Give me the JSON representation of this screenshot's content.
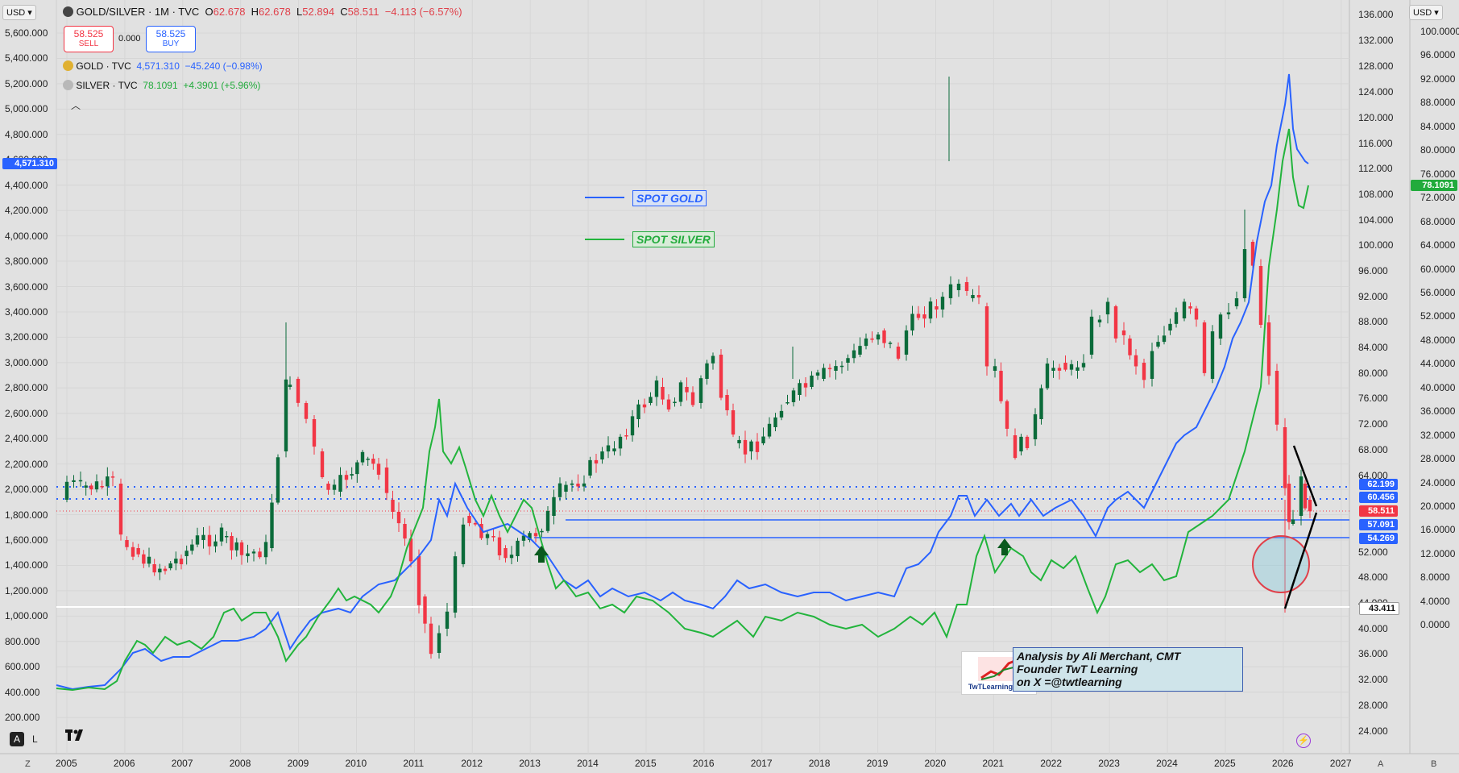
{
  "header": {
    "symbol": "GOLD/SILVER · 1M · TVC",
    "open_label": "O",
    "open": "62.678",
    "high_label": "H",
    "high": "62.678",
    "low_label": "L",
    "low": "52.894",
    "close_label": "C",
    "close": "58.511",
    "change": "−4.113 (−6.57%)"
  },
  "trade": {
    "sell_price": "58.525",
    "sell_label": "SELL",
    "spread": "0.000",
    "buy_price": "58.525",
    "buy_label": "BUY"
  },
  "overlays": [
    {
      "name": "GOLD · TVC",
      "value": "4,571.310",
      "change": "−45.240 (−0.98%)",
      "color": "#2962ff"
    },
    {
      "name": "SILVER · TVC",
      "value": "78.1091",
      "change": "+4.3901 (+5.96%)",
      "color": "#22ab3c"
    }
  ],
  "currency_left": "USD",
  "currency_right": "USD",
  "left_axis": {
    "ticks": [
      "5,600.000",
      "5,400.000",
      "5,200.000",
      "5,000.000",
      "4,800.000",
      "4,600.000",
      "4,400.000",
      "4,200.000",
      "4,000.000",
      "3,800.000",
      "3,600.000",
      "3,400.000",
      "3,200.000",
      "3,000.000",
      "2,800.000",
      "2,600.000",
      "2,400.000",
      "2,200.000",
      "2,000.000",
      "1,800.000",
      "1,600.000",
      "1,400.000",
      "1,200.000",
      "1,000.000",
      "800.000",
      "600.000",
      "400.000",
      "200.000"
    ],
    "current_gold": "4,571.310"
  },
  "right_axis_ratio": {
    "ticks": [
      "136.000",
      "132.000",
      "128.000",
      "124.000",
      "120.000",
      "116.000",
      "112.000",
      "108.000",
      "104.000",
      "100.000",
      "96.000",
      "92.000",
      "88.000",
      "84.000",
      "80.000",
      "76.000",
      "72.000",
      "68.000",
      "64.000",
      "52.000",
      "48.000",
      "44.000",
      "40.000",
      "36.000",
      "32.000",
      "28.000",
      "24.000"
    ]
  },
  "right_axis_silver": {
    "ticks": [
      "100.0000",
      "96.0000",
      "92.0000",
      "88.0000",
      "84.0000",
      "80.0000",
      "76.0000",
      "72.0000",
      "68.0000",
      "64.0000",
      "60.0000",
      "56.0000",
      "52.0000",
      "48.0000",
      "44.0000",
      "40.0000",
      "36.0000",
      "32.0000",
      "28.0000",
      "24.0000",
      "20.0000",
      "16.0000",
      "12.0000",
      "8.0000",
      "4.0000",
      "0.0000"
    ],
    "current_silver": "78.1091"
  },
  "price_badges": [
    {
      "value": "62.199",
      "color": "#2962ff"
    },
    {
      "value": "60.456",
      "color": "#2962ff"
    },
    {
      "value": "58.511",
      "color": "#f23645"
    },
    {
      "value": "57.091",
      "color": "#2962ff"
    },
    {
      "value": "54.269",
      "color": "#2962ff"
    },
    {
      "value": "43.411",
      "color": "#ffffff"
    }
  ],
  "x_axis": {
    "ticks": [
      "2005",
      "2006",
      "2007",
      "2008",
      "2009",
      "2010",
      "2011",
      "2012",
      "2013",
      "2014",
      "2015",
      "2016",
      "2017",
      "2018",
      "2019",
      "2020",
      "2021",
      "2022",
      "2023",
      "2024",
      "2025",
      "2026",
      "2027"
    ]
  },
  "legend": {
    "gold_label": "SPOT GOLD",
    "silver_label": "SPOT SILVER"
  },
  "credit": {
    "line1": "Analysis by Ali Merchant, CMT",
    "line2": "Founder TwT Learning",
    "line3": "on X =@twtlearning"
  },
  "logo_text": "TwTLearning.com",
  "bottom": {
    "auto_label": "A",
    "log_label": "L",
    "z_label": "Z",
    "a_label": "A",
    "b_label": "B"
  },
  "colors": {
    "up": "#0b6b3a",
    "down": "#f23645",
    "gold_line": "#2962ff",
    "silver_line": "#22b43c"
  }
}
